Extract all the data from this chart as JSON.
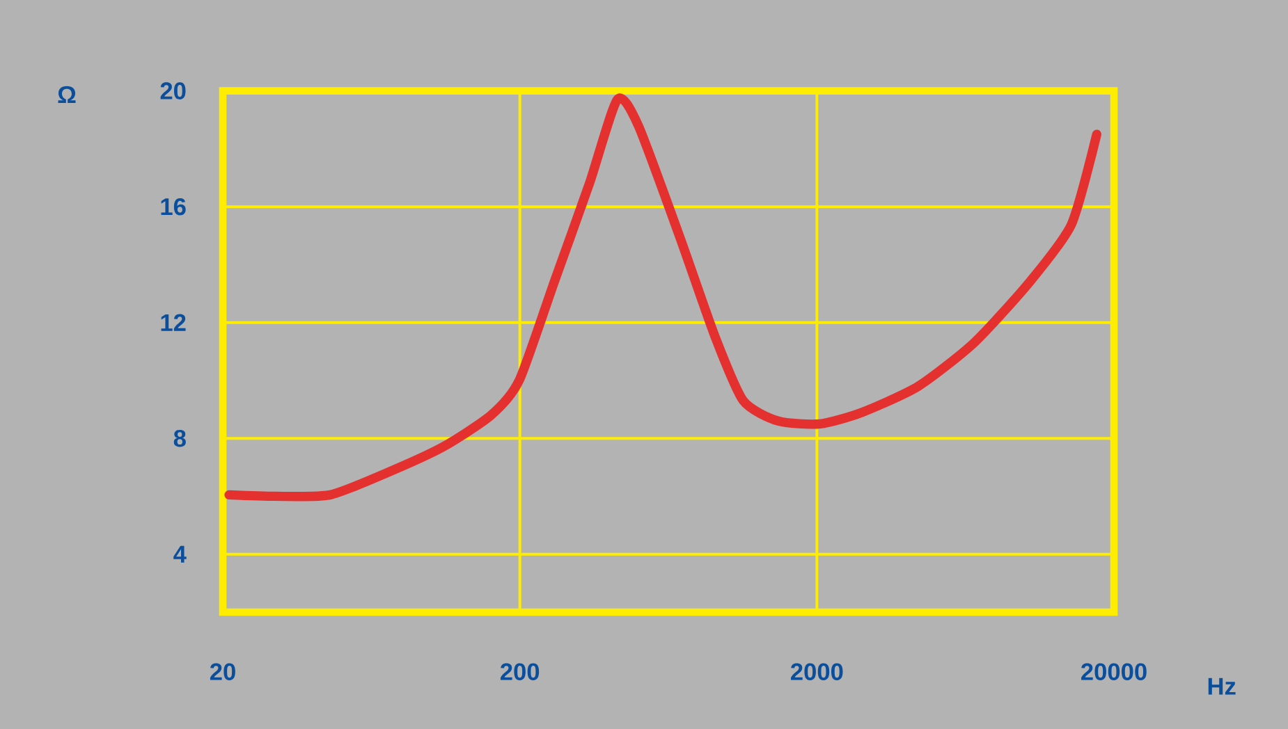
{
  "chart_data": {
    "type": "line",
    "xlabel": "Hz",
    "ylabel": "Ω",
    "log": "x",
    "grid": true,
    "marker": "none",
    "line_style": "solid",
    "xlim": [
      20,
      20000
    ],
    "ylim": [
      2,
      20
    ],
    "xticks": [
      20,
      200,
      2000,
      20000
    ],
    "yticks": [
      4,
      8,
      12,
      16,
      20
    ],
    "x": [
      21,
      30,
      46,
      71,
      110,
      160,
      199,
      261,
      343,
      426,
      501,
      694,
      909,
      1130,
      1480,
      2050,
      2840,
      4390,
      6760,
      10400,
      14400,
      17500
    ],
    "series": [
      {
        "color": "#e53030",
        "values": [
          6.05,
          6.0,
          6.05,
          6.8,
          7.7,
          8.8,
          10.0,
          13.4,
          16.8,
          19.7,
          18.8,
          14.9,
          11.5,
          9.3,
          8.6,
          8.5,
          8.9,
          9.8,
          11.3,
          13.4,
          15.4,
          18.5
        ]
      }
    ]
  }
}
